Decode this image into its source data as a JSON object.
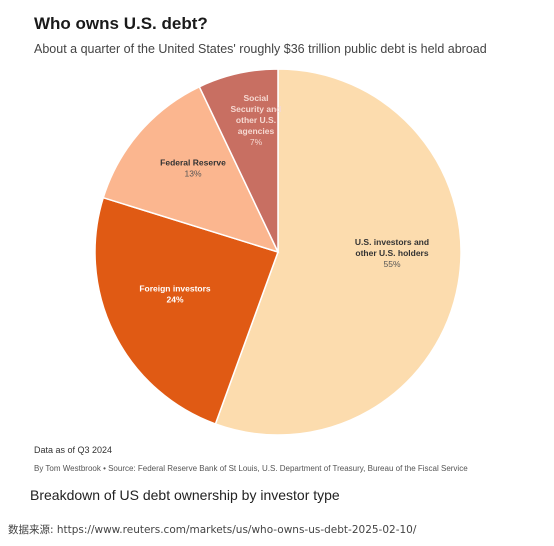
{
  "header": {
    "title": "Who owns U.S. debt?",
    "subtitle": "About a quarter of the United States' roughly $36 trillion public debt is held abroad"
  },
  "chart_data": {
    "type": "pie",
    "title": "Who owns U.S. debt?",
    "subtitle": "About a quarter of the United States' roughly $36 trillion public debt is held abroad",
    "slices": [
      {
        "label": "U.S. investors and other U.S. holders",
        "label_lines": [
          "U.S. investors and",
          "other U.S. holders"
        ],
        "value": 55,
        "value_label": "55%",
        "color": "#fcdcae",
        "text_color": "#333333",
        "value_color": "#555555"
      },
      {
        "label": "Foreign investors",
        "label_lines": [
          "Foreign investors"
        ],
        "value": 24,
        "value_label": "24%",
        "color": "#e05a14",
        "text_color": "#ffffff",
        "value_color": "#ffffff"
      },
      {
        "label": "Federal Reserve",
        "label_lines": [
          "Federal Reserve"
        ],
        "value": 13,
        "value_label": "13%",
        "color": "#fbb68f",
        "text_color": "#333333",
        "value_color": "#555555"
      },
      {
        "label": "Social Security and other U.S. agencies",
        "label_lines": [
          "Social",
          "Security and",
          "other U.S.",
          "agencies"
        ],
        "value": 7,
        "value_label": "7%",
        "color": "#c86f62",
        "text_color": "#f6d9d2",
        "value_color": "#f6d9d2"
      }
    ],
    "start": "12 o'clock",
    "direction": "clockwise"
  },
  "footer": {
    "note": "Data as of Q3 2024",
    "byline": "By Tom Westbrook • Source: Federal Reserve Bank of St Louis, U.S. Department of Treasury, Bureau of the Fiscal Service",
    "caption": "Breakdown of US debt ownership by investor type",
    "source": "数据来源: https://www.reuters.com/markets/us/who-owns-us-debt-2025-02-10/"
  }
}
